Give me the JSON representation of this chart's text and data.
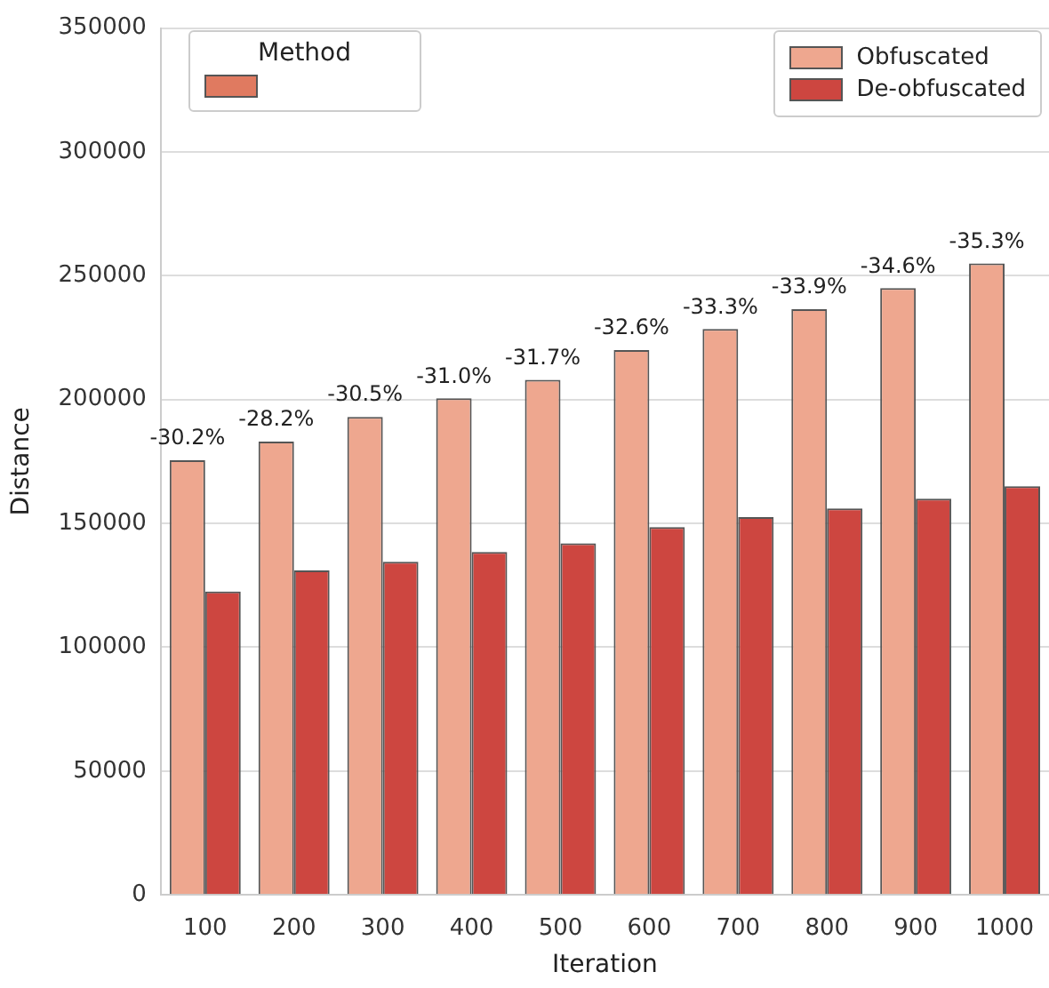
{
  "chart_data": {
    "type": "bar",
    "xlabel": "Iteration",
    "ylabel": "Distance",
    "legend_title": "Method",
    "categories": [
      "100",
      "200",
      "300",
      "400",
      "500",
      "600",
      "700",
      "800",
      "900",
      "1000"
    ],
    "series": [
      {
        "name": "Obfuscated",
        "color": "#eea78f",
        "values": [
          175500,
          183000,
          193000,
          200500,
          208000,
          220000,
          228500,
          236500,
          245000,
          255000
        ]
      },
      {
        "name": "De-obfuscated",
        "color": "#cd4640",
        "values": [
          122500,
          131000,
          134500,
          138500,
          142000,
          148500,
          152500,
          156000,
          160000,
          165000
        ]
      }
    ],
    "ylim": [
      0,
      350000
    ],
    "yticks": [
      0,
      50000,
      100000,
      150000,
      200000,
      250000,
      300000,
      350000
    ],
    "grid": "y",
    "legend": "top right",
    "annotations": [
      {
        "text": "-30.2%",
        "x": "100",
        "y": 175500
      },
      {
        "text": "-28.2%",
        "x": "200",
        "y": 183000
      },
      {
        "text": "-30.5%",
        "x": "300",
        "y": 193000
      },
      {
        "text": "-31.0%",
        "x": "400",
        "y": 200500
      },
      {
        "text": "-31.7%",
        "x": "500",
        "y": 208000
      },
      {
        "text": "-32.6%",
        "x": "600",
        "y": 220000
      },
      {
        "text": "-33.3%",
        "x": "700",
        "y": 228500
      },
      {
        "text": "-33.9%",
        "x": "800",
        "y": 236500
      },
      {
        "text": "-34.6%",
        "x": "900",
        "y": 245000
      },
      {
        "text": "-35.3%",
        "x": "1000",
        "y": 255000
      }
    ]
  }
}
